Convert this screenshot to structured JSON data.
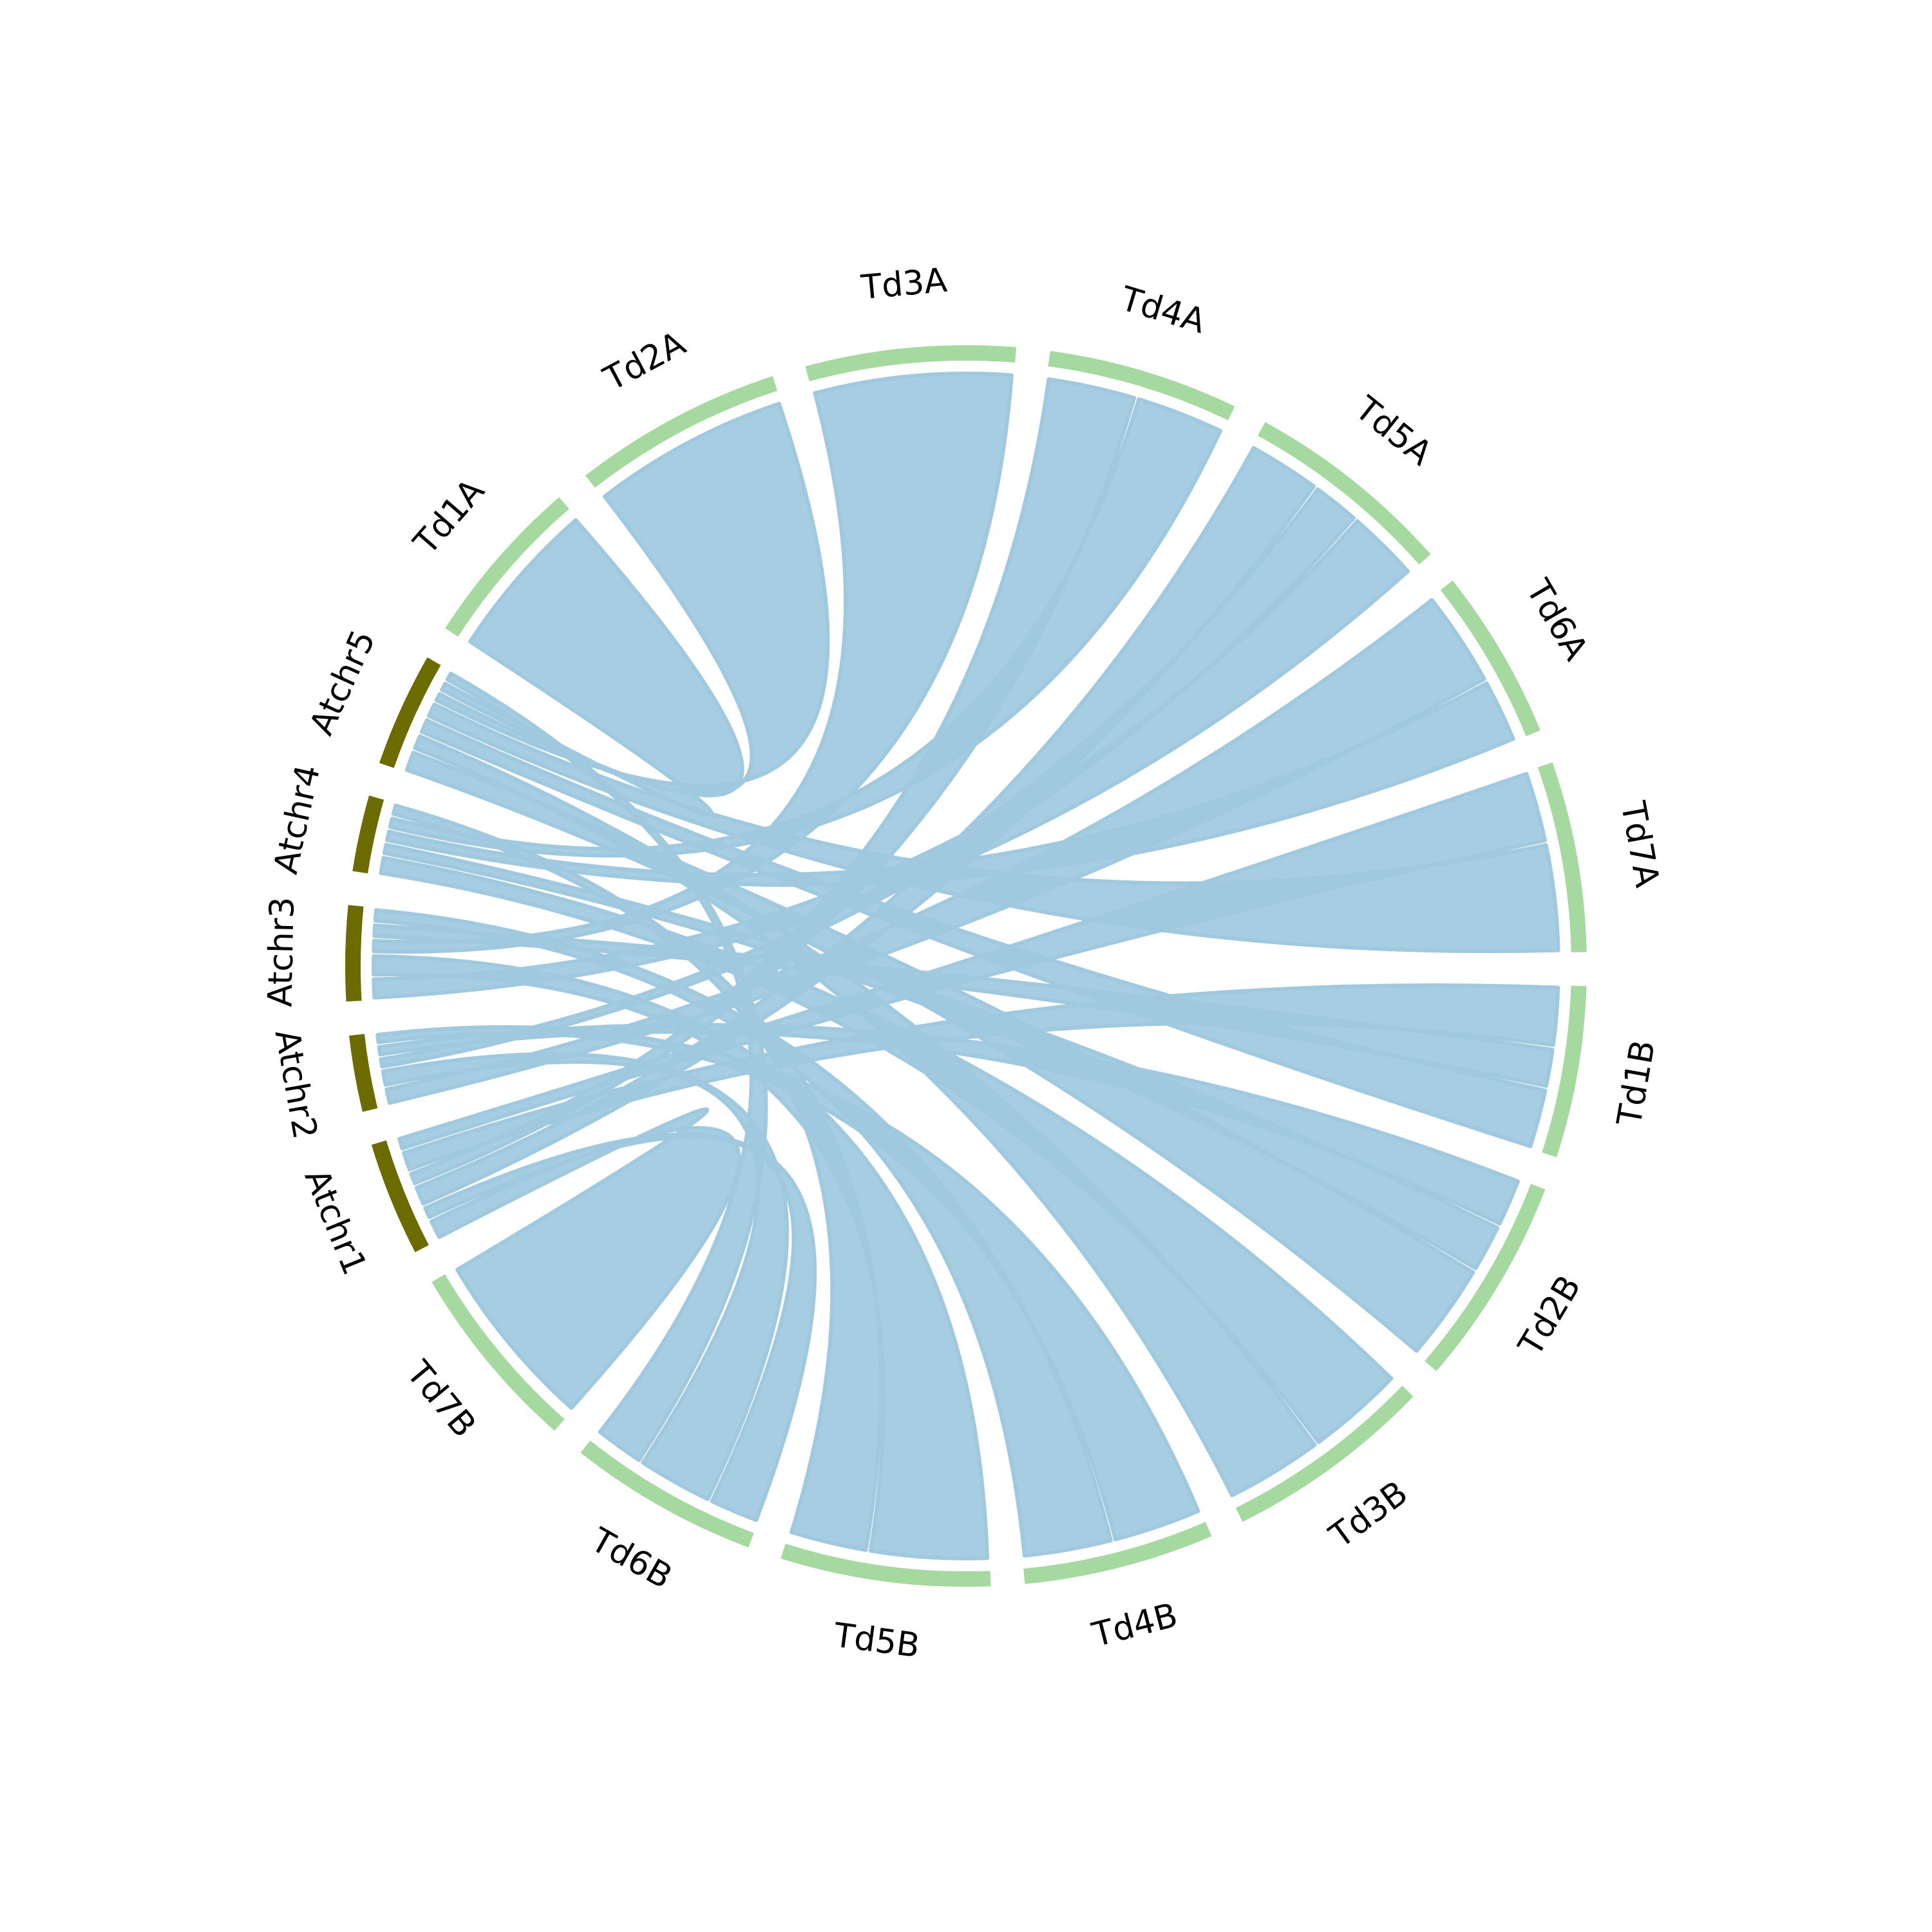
{
  "colors": {
    "background": "#ffffff",
    "link": "#a0c9e0",
    "arabidopsis_track": "#6b6b00",
    "wheat_track": "#a5d9a0",
    "label": "#000000"
  },
  "chart_data": {
    "type": "circos",
    "segments": [
      {
        "name": "Atchr1",
        "group": "arabidopsis",
        "size": 6
      },
      {
        "name": "Atchr2",
        "group": "arabidopsis",
        "size": 4
      },
      {
        "name": "Atchr3",
        "group": "arabidopsis",
        "size": 5
      },
      {
        "name": "Atchr4",
        "group": "arabidopsis",
        "size": 4
      },
      {
        "name": "Atchr5",
        "group": "arabidopsis",
        "size": 6
      },
      {
        "name": "Td1A",
        "group": "wheat",
        "size": 9
      },
      {
        "name": "Td2A",
        "group": "wheat",
        "size": 11
      },
      {
        "name": "Td3A",
        "group": "wheat",
        "size": 11
      },
      {
        "name": "Td4A",
        "group": "wheat",
        "size": 10
      },
      {
        "name": "Td5A",
        "group": "wheat",
        "size": 11
      },
      {
        "name": "Td6A",
        "group": "wheat",
        "size": 9
      },
      {
        "name": "Td7A",
        "group": "wheat",
        "size": 10
      },
      {
        "name": "Td1B",
        "group": "wheat",
        "size": 9
      },
      {
        "name": "Td2B",
        "group": "wheat",
        "size": 11
      },
      {
        "name": "Td3B",
        "group": "wheat",
        "size": 11
      },
      {
        "name": "Td4B",
        "group": "wheat",
        "size": 10
      },
      {
        "name": "Td5B",
        "group": "wheat",
        "size": 11
      },
      {
        "name": "Td6B",
        "group": "wheat",
        "size": 10
      },
      {
        "name": "Td7B",
        "group": "wheat",
        "size": 10
      }
    ],
    "links": [
      {
        "source": "Atchr1",
        "target": "Td7B",
        "width": 3
      },
      {
        "source": "Atchr1",
        "target": "Td6B",
        "width": 2
      },
      {
        "source": "Atchr1",
        "target": "Td5A",
        "width": 3
      },
      {
        "source": "Atchr1",
        "target": "Td4A",
        "width": 2
      },
      {
        "source": "Atchr1",
        "target": "Td1B",
        "width": 3
      },
      {
        "source": "Atchr1",
        "target": "Td7A",
        "width": 2
      },
      {
        "source": "Atchr2",
        "target": "Td6A",
        "width": 3
      },
      {
        "source": "Atchr2",
        "target": "Td6B",
        "width": 3
      },
      {
        "source": "Atchr2",
        "target": "Td5A",
        "width": 2
      },
      {
        "source": "Atchr2",
        "target": "Td2B",
        "width": 2
      },
      {
        "source": "Atchr2",
        "target": "Td4B",
        "width": 2
      },
      {
        "source": "Atchr3",
        "target": "Td5A",
        "width": 3
      },
      {
        "source": "Atchr3",
        "target": "Td5B",
        "width": 3
      },
      {
        "source": "Atchr3",
        "target": "Td3A",
        "width": 2
      },
      {
        "source": "Atchr3",
        "target": "Td1B",
        "width": 2
      },
      {
        "source": "Atchr3",
        "target": "Td4B",
        "width": 2
      },
      {
        "source": "Atchr4",
        "target": "Td3B",
        "width": 3
      },
      {
        "source": "Atchr4",
        "target": "Td2B",
        "width": 2
      },
      {
        "source": "Atchr4",
        "target": "Td6A",
        "width": 2
      },
      {
        "source": "Atchr4",
        "target": "Td4A",
        "width": 2
      },
      {
        "source": "Atchr4",
        "target": "Td5B",
        "width": 2
      },
      {
        "source": "Atchr5",
        "target": "Td2B",
        "width": 4
      },
      {
        "source": "Atchr5",
        "target": "Td3B",
        "width": 3
      },
      {
        "source": "Atchr5",
        "target": "Td1B",
        "width": 3
      },
      {
        "source": "Atchr5",
        "target": "Td7A",
        "width": 3
      },
      {
        "source": "Atchr5",
        "target": "Td2A",
        "width": 2
      },
      {
        "source": "Atchr5",
        "target": "Td1A",
        "width": 2
      },
      {
        "source": "Atchr5",
        "target": "Td6B",
        "width": 2
      }
    ]
  }
}
